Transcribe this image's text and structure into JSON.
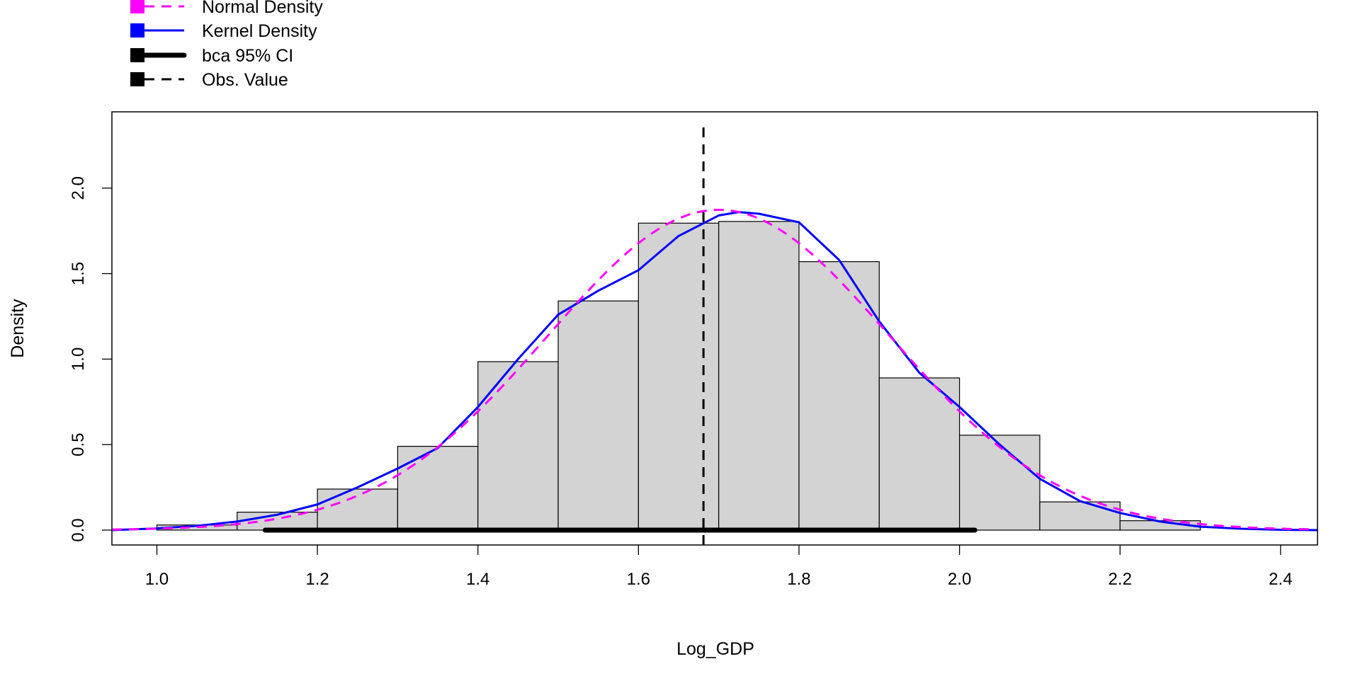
{
  "chart_data": {
    "type": "bar",
    "xlabel": "Log_GDP",
    "ylabel": "Density",
    "xlim": [
      0.944,
      2.446
    ],
    "ylim": [
      -0.087,
      2.446
    ],
    "x_ticks": [
      "1.0",
      "1.2",
      "1.4",
      "1.6",
      "1.8",
      "2.0",
      "2.2",
      "2.4"
    ],
    "y_ticks": [
      "0.0",
      "0.5",
      "1.0",
      "1.5",
      "2.0"
    ],
    "grid": false,
    "legend_position": "top-left, above plot",
    "histogram": {
      "breaks": [
        1.0,
        1.1,
        1.2,
        1.3,
        1.4,
        1.5,
        1.6,
        1.7,
        1.8,
        1.9,
        2.0,
        2.1,
        2.2,
        2.3
      ],
      "density": [
        0.03,
        0.105,
        0.24,
        0.49,
        0.985,
        1.34,
        1.795,
        1.805,
        1.57,
        0.89,
        0.555,
        0.165,
        0.055
      ],
      "fill": "#d3d3d3"
    },
    "series": [
      {
        "name": "Normal Density",
        "color": "#ff00ff",
        "style": "dashed",
        "mean": 1.7,
        "sd": 0.213
      },
      {
        "name": "Kernel Density",
        "color": "#0000ff",
        "style": "solid",
        "x": [
          0.944,
          1.0,
          1.05,
          1.1,
          1.15,
          1.2,
          1.25,
          1.3,
          1.35,
          1.4,
          1.45,
          1.5,
          1.55,
          1.6,
          1.65,
          1.7,
          1.725,
          1.75,
          1.8,
          1.85,
          1.9,
          1.95,
          2.0,
          2.05,
          2.1,
          2.15,
          2.2,
          2.25,
          2.3,
          2.35,
          2.4,
          2.446
        ],
        "y": [
          0.0,
          0.01,
          0.025,
          0.05,
          0.09,
          0.15,
          0.25,
          0.36,
          0.48,
          0.72,
          1.0,
          1.26,
          1.4,
          1.52,
          1.72,
          1.84,
          1.86,
          1.85,
          1.8,
          1.58,
          1.22,
          0.92,
          0.72,
          0.5,
          0.3,
          0.17,
          0.1,
          0.05,
          0.02,
          0.008,
          0.002,
          0.0
        ]
      },
      {
        "name": "bca 95% CI",
        "color": "#000000",
        "style": "thick",
        "x": [
          1.135,
          2.019
        ],
        "y": 0
      },
      {
        "name": "Obs. Value",
        "color": "#000000",
        "style": "dashed",
        "x": 1.681
      }
    ]
  }
}
